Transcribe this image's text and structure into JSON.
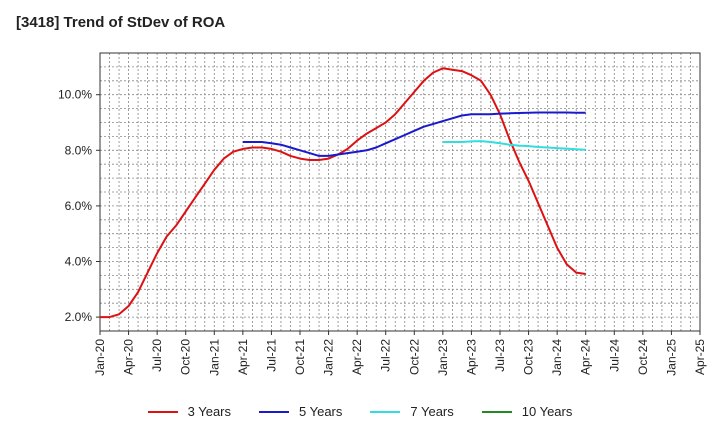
{
  "title": "[3418]  Trend of StDev of ROA",
  "chart_data": {
    "type": "line",
    "title": "[3418]  Trend of StDev of ROA",
    "xlabel": "",
    "ylabel": "",
    "x_ticks": [
      "Jan-20",
      "Apr-20",
      "Jul-20",
      "Oct-20",
      "Jan-21",
      "Apr-21",
      "Jul-21",
      "Oct-21",
      "Jan-22",
      "Apr-22",
      "Jul-22",
      "Oct-22",
      "Jan-23",
      "Apr-23",
      "Jul-23",
      "Oct-23",
      "Jan-24",
      "Apr-24",
      "Jul-24",
      "Oct-24",
      "Jan-25",
      "Apr-25"
    ],
    "y_ticks": [
      "2.0%",
      "4.0%",
      "6.0%",
      "8.0%",
      "10.0%"
    ],
    "y_tick_values": [
      2,
      4,
      6,
      8,
      10
    ],
    "ylim": [
      1.5,
      11.5
    ],
    "xlim": [
      0,
      63
    ],
    "grid": true,
    "legend_position": "bottom",
    "series": [
      {
        "name": "3 Years",
        "color": "#dd1111",
        "x": [
          0,
          1,
          2,
          3,
          4,
          5,
          6,
          7,
          8,
          9,
          10,
          11,
          12,
          13,
          14,
          15,
          16,
          17,
          18,
          19,
          20,
          21,
          22,
          23,
          24,
          25,
          26,
          27,
          28,
          29,
          30,
          31,
          32,
          33,
          34,
          35,
          36,
          37,
          38,
          39,
          40,
          41,
          42,
          43,
          44,
          45,
          46,
          47,
          48,
          49,
          50,
          51
        ],
        "values": [
          2.0,
          2.0,
          2.1,
          2.4,
          2.9,
          3.6,
          4.3,
          4.9,
          5.3,
          5.8,
          6.3,
          6.8,
          7.3,
          7.7,
          7.95,
          8.05,
          8.1,
          8.1,
          8.05,
          7.95,
          7.8,
          7.7,
          7.65,
          7.65,
          7.7,
          7.85,
          8.05,
          8.35,
          8.6,
          8.8,
          9.0,
          9.3,
          9.7,
          10.1,
          10.5,
          10.8,
          10.95,
          10.9,
          10.85,
          10.7,
          10.5,
          10.0,
          9.3,
          8.4,
          7.6,
          6.9,
          6.1,
          5.3,
          4.5,
          3.9,
          3.6,
          3.55
        ]
      },
      {
        "name": "5 Years",
        "color": "#1a1acc",
        "x": [
          15,
          16,
          17,
          18,
          19,
          20,
          21,
          22,
          23,
          24,
          25,
          26,
          27,
          28,
          29,
          30,
          31,
          32,
          33,
          34,
          35,
          36,
          37,
          38,
          39,
          40,
          41,
          42,
          43,
          44,
          45,
          46,
          47,
          48,
          49,
          50,
          51
        ],
        "values": [
          8.3,
          8.3,
          8.3,
          8.25,
          8.2,
          8.1,
          8.0,
          7.9,
          7.8,
          7.8,
          7.85,
          7.9,
          7.95,
          8.0,
          8.1,
          8.25,
          8.4,
          8.55,
          8.7,
          8.85,
          8.95,
          9.05,
          9.15,
          9.25,
          9.3,
          9.3,
          9.3,
          9.32,
          9.33,
          9.34,
          9.35,
          9.36,
          9.36,
          9.36,
          9.36,
          9.35,
          9.35
        ]
      },
      {
        "name": "7 Years",
        "color": "#33dddd",
        "x": [
          36,
          37,
          38,
          39,
          40,
          41,
          42,
          43,
          44,
          45,
          46,
          47,
          48,
          49,
          50,
          51
        ],
        "values": [
          8.3,
          8.3,
          8.3,
          8.32,
          8.33,
          8.3,
          8.25,
          8.2,
          8.17,
          8.15,
          8.12,
          8.1,
          8.08,
          8.06,
          8.04,
          8.02
        ]
      },
      {
        "name": "10 Years",
        "color": "#228822",
        "x": [],
        "values": []
      }
    ]
  }
}
